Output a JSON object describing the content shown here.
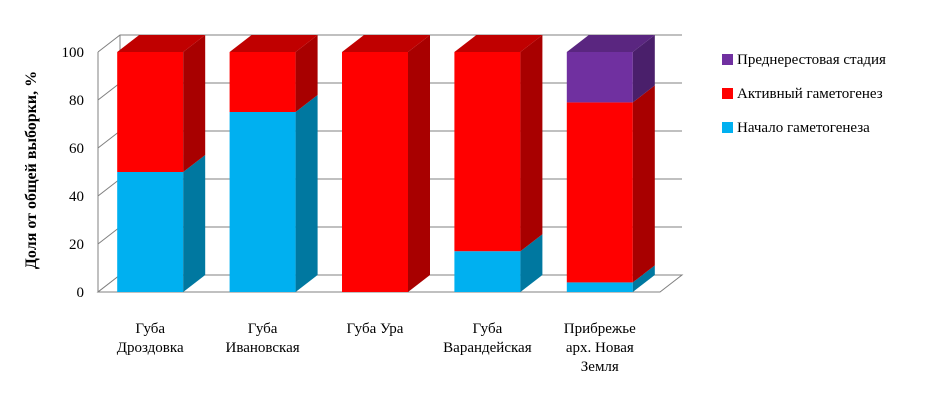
{
  "chart_data": {
    "type": "bar",
    "stacked": true,
    "three_d": true,
    "title": "",
    "xlabel": "",
    "ylabel": "Доля от общей выборки, %",
    "ylim": [
      0,
      100
    ],
    "yticks": [
      "0",
      "20",
      "40",
      "60",
      "80",
      "100"
    ],
    "ytick_values": [
      0,
      20,
      40,
      60,
      80,
      100
    ],
    "grid": true,
    "legend_position": "right",
    "categories": [
      [
        "Губа",
        "Дроздовка"
      ],
      [
        "Губа",
        "Ивановская"
      ],
      [
        "Губа Ура"
      ],
      [
        "Губа",
        "Варандейская"
      ],
      [
        "Прибрежье",
        "арх. Новая",
        "Земля"
      ]
    ],
    "series": [
      {
        "name": "Начало гаметогенеза",
        "color": "#00b0f0",
        "side_color": "#0078a0",
        "top_color": "#40c8f8",
        "values": [
          50,
          75,
          0,
          17,
          4
        ]
      },
      {
        "name": "Активный гаметогенез",
        "color": "#ff0000",
        "side_color": "#a80000",
        "top_color": "#c00000",
        "values": [
          50,
          25,
          100,
          83,
          75
        ]
      },
      {
        "name": "Преднерестовая стадия",
        "color": "#7030a0",
        "side_color": "#4a1f6b",
        "top_color": "#5a2680",
        "values": [
          0,
          0,
          0,
          0,
          21
        ]
      }
    ],
    "legend_order": [
      2,
      1,
      0
    ]
  }
}
